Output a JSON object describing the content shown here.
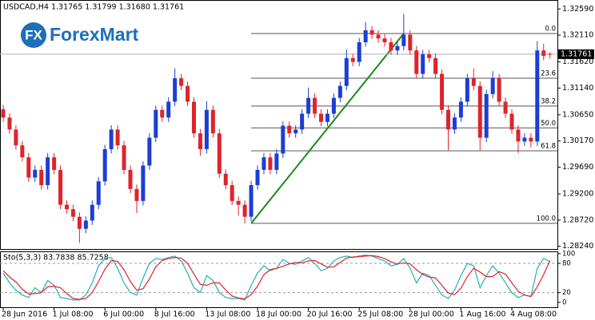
{
  "chart_data": {
    "type": "candlestick",
    "header": "USDCAD,H4  1.31765 1.31799 1.31680 1.31761",
    "watermark_icon": "FX",
    "watermark": "ForexMart",
    "up_color": "#1c3ed4",
    "down_color": "#e0232b",
    "ylim": [
      1.2819,
      1.3274
    ],
    "yticks": [
      {
        "value": 1.3259,
        "label": "1.32590"
      },
      {
        "value": 1.3211,
        "label": "1.32110"
      },
      {
        "value": 1.3162,
        "label": "1.31620"
      },
      {
        "value": 1.3114,
        "label": "1.31140"
      },
      {
        "value": 1.3065,
        "label": "1.30650"
      },
      {
        "value": 1.3017,
        "label": "1.30170"
      },
      {
        "value": 1.2969,
        "label": "1.29690"
      },
      {
        "value": 1.292,
        "label": "1.29200"
      },
      {
        "value": 1.2872,
        "label": "1.28720"
      },
      {
        "value": 1.2824,
        "label": "1.28240"
      }
    ],
    "current_price": 1.31761,
    "categories": [
      "28 Jun 2016",
      null,
      null,
      null,
      null,
      null,
      null,
      null,
      "1 Jul 08:00",
      null,
      null,
      null,
      null,
      null,
      null,
      null,
      "6 Jul 00:00",
      null,
      null,
      null,
      null,
      null,
      null,
      null,
      "8 Jul 16:00",
      null,
      null,
      null,
      null,
      null,
      null,
      null,
      "13 Jul 08:00",
      null,
      null,
      null,
      null,
      null,
      null,
      null,
      "18 Jul 00:00",
      null,
      null,
      null,
      null,
      null,
      null,
      null,
      "20 Jul 16:00",
      null,
      null,
      null,
      null,
      null,
      null,
      null,
      "25 Jul 08:00",
      null,
      null,
      null,
      null,
      null,
      null,
      null,
      "28 Jul 00:00",
      null,
      null,
      null,
      null,
      null,
      null,
      null,
      "1 Aug 16:00",
      null,
      null,
      null,
      null,
      null,
      null,
      null,
      "4 Aug 08:00",
      null,
      null,
      null,
      null,
      null,
      null
    ],
    "candles": [
      [
        1.3075,
        1.3083,
        1.3052,
        1.306
      ],
      [
        1.306,
        1.3068,
        1.303,
        1.3038
      ],
      [
        1.3038,
        1.3046,
        1.3001,
        1.3009
      ],
      [
        1.3009,
        1.3017,
        1.2979,
        1.2987
      ],
      [
        1.2987,
        1.2995,
        1.2942,
        1.295
      ],
      [
        1.295,
        1.2972,
        1.2942,
        1.2964
      ],
      [
        1.2964,
        1.2972,
        1.2928,
        1.2936
      ],
      [
        1.2936,
        1.2995,
        1.2928,
        1.2987
      ],
      [
        1.2987,
        1.2995,
        1.2956,
        1.2964
      ],
      [
        1.2964,
        1.2972,
        1.2892,
        1.29
      ],
      [
        1.29,
        1.2908,
        1.2884,
        1.2892
      ],
      [
        1.2892,
        1.29,
        1.287,
        1.2878
      ],
      [
        1.2878,
        1.2886,
        1.283,
        1.2856
      ],
      [
        1.2856,
        1.2879,
        1.2848,
        1.2871
      ],
      [
        1.2871,
        1.2908,
        1.2863,
        1.29
      ],
      [
        1.29,
        1.2951,
        1.2892,
        1.2943
      ],
      [
        1.2943,
        1.301,
        1.2935,
        1.3002
      ],
      [
        1.3002,
        1.3046,
        1.2994,
        1.3038
      ],
      [
        1.3038,
        1.3046,
        1.3001,
        1.3009
      ],
      [
        1.3009,
        1.3017,
        1.2956,
        1.2964
      ],
      [
        1.2964,
        1.2972,
        1.2921,
        1.2929
      ],
      [
        1.2929,
        1.2937,
        1.2885,
        1.2907
      ],
      [
        1.2907,
        1.298,
        1.2899,
        1.2972
      ],
      [
        1.2972,
        1.3031,
        1.2964,
        1.3023
      ],
      [
        1.3023,
        1.3082,
        1.3015,
        1.3074
      ],
      [
        1.3074,
        1.3082,
        1.3052,
        1.306
      ],
      [
        1.306,
        1.3097,
        1.3052,
        1.3089
      ],
      [
        1.3089,
        1.315,
        1.3081,
        1.3132
      ],
      [
        1.3132,
        1.314,
        1.311,
        1.3118
      ],
      [
        1.3118,
        1.3126,
        1.3081,
        1.3089
      ],
      [
        1.3089,
        1.3097,
        1.3023,
        1.3031
      ],
      [
        1.3031,
        1.3039,
        1.299,
        1.3002
      ],
      [
        1.3002,
        1.309,
        1.2994,
        1.3074
      ],
      [
        1.3074,
        1.3082,
        1.3023,
        1.3031
      ],
      [
        1.3031,
        1.3039,
        1.2949,
        1.2957
      ],
      [
        1.2957,
        1.2965,
        1.2928,
        1.2936
      ],
      [
        1.2936,
        1.2944,
        1.2899,
        1.2907
      ],
      [
        1.2907,
        1.2915,
        1.288,
        1.29
      ],
      [
        1.29,
        1.2908,
        1.2866,
        1.2878
      ],
      [
        1.2878,
        1.2944,
        1.287,
        1.2936
      ],
      [
        1.2936,
        1.2972,
        1.2928,
        1.2964
      ],
      [
        1.2964,
        1.2995,
        1.2956,
        1.2987
      ],
      [
        1.2987,
        1.2995,
        1.2956,
        1.2964
      ],
      [
        1.2964,
        1.3002,
        1.2956,
        1.2994
      ],
      [
        1.2994,
        1.3053,
        1.2986,
        1.3045
      ],
      [
        1.3045,
        1.3053,
        1.3023,
        1.3031
      ],
      [
        1.3031,
        1.3046,
        1.3023,
        1.3038
      ],
      [
        1.3038,
        1.3075,
        1.303,
        1.3067
      ],
      [
        1.3067,
        1.3115,
        1.3059,
        1.3096
      ],
      [
        1.3096,
        1.3104,
        1.3059,
        1.3067
      ],
      [
        1.3067,
        1.3075,
        1.3044,
        1.3052
      ],
      [
        1.3052,
        1.3075,
        1.3044,
        1.3067
      ],
      [
        1.3067,
        1.3104,
        1.3059,
        1.3096
      ],
      [
        1.3096,
        1.3126,
        1.3088,
        1.3118
      ],
      [
        1.3118,
        1.3185,
        1.311,
        1.3169
      ],
      [
        1.3169,
        1.3177,
        1.3154,
        1.3162
      ],
      [
        1.3162,
        1.3206,
        1.3154,
        1.3198
      ],
      [
        1.3198,
        1.3235,
        1.319,
        1.322
      ],
      [
        1.322,
        1.3228,
        1.3204,
        1.3212
      ],
      [
        1.3212,
        1.322,
        1.3197,
        1.3205
      ],
      [
        1.3205,
        1.3213,
        1.319,
        1.3198
      ],
      [
        1.3198,
        1.3206,
        1.3175,
        1.3183
      ],
      [
        1.3183,
        1.3199,
        1.3175,
        1.3191
      ],
      [
        1.3191,
        1.325,
        1.3183,
        1.3212
      ],
      [
        1.3212,
        1.322,
        1.3175,
        1.3183
      ],
      [
        1.3183,
        1.3191,
        1.3132,
        1.314
      ],
      [
        1.314,
        1.3184,
        1.3132,
        1.3176
      ],
      [
        1.3176,
        1.3184,
        1.3161,
        1.3169
      ],
      [
        1.3169,
        1.3177,
        1.3132,
        1.314
      ],
      [
        1.314,
        1.3148,
        1.3066,
        1.3074
      ],
      [
        1.3074,
        1.3082,
        1.3,
        1.3038
      ],
      [
        1.3038,
        1.3068,
        1.303,
        1.306
      ],
      [
        1.306,
        1.3097,
        1.3052,
        1.3089
      ],
      [
        1.3089,
        1.314,
        1.3081,
        1.3132
      ],
      [
        1.3132,
        1.315,
        1.311,
        1.3118
      ],
      [
        1.3118,
        1.3126,
        1.3,
        1.3023
      ],
      [
        1.3023,
        1.3111,
        1.3015,
        1.3103
      ],
      [
        1.3103,
        1.3145,
        1.3095,
        1.3132
      ],
      [
        1.3132,
        1.314,
        1.3081,
        1.3089
      ],
      [
        1.3089,
        1.3097,
        1.3059,
        1.3067
      ],
      [
        1.3067,
        1.3075,
        1.303,
        1.3038
      ],
      [
        1.3038,
        1.3046,
        1.2995,
        1.3016
      ],
      [
        1.3016,
        1.3031,
        1.3008,
        1.3023
      ],
      [
        1.3023,
        1.3031,
        1.3005,
        1.3016
      ],
      [
        1.3016,
        1.32,
        1.3008,
        1.3183
      ],
      [
        1.3183,
        1.3195,
        1.3165,
        1.3173
      ],
      [
        1.31765,
        1.31799,
        1.3168,
        1.31761
      ]
    ],
    "fibonacci": {
      "color": "#555555",
      "trend_color": "#1a8a1a",
      "start": 39,
      "end": 63,
      "levels": [
        {
          "value": 1.3214,
          "label": "0.0"
        },
        {
          "value": 1.3132,
          "label": "23.6"
        },
        {
          "value": 1.3081,
          "label": "38.2"
        },
        {
          "value": 1.3041,
          "label": "50.0"
        },
        {
          "value": 1.2999,
          "label": "61.8"
        },
        {
          "value": 1.2866,
          "label": "100.0"
        }
      ]
    },
    "indicator": {
      "type": "line",
      "label": "Sto(5,3,3) 83.7838 85.7258",
      "ylim": [
        -10,
        103
      ],
      "yticks": [
        100,
        80,
        20,
        0
      ],
      "levels": [
        80,
        20
      ],
      "series": [
        {
          "color": "#22b0b8",
          "values": [
            60,
            40,
            25,
            15,
            10,
            30,
            20,
            45,
            35,
            10,
            8,
            5,
            5,
            15,
            40,
            75,
            90,
            92,
            70,
            40,
            20,
            15,
            50,
            80,
            90,
            88,
            92,
            95,
            85,
            60,
            30,
            20,
            55,
            45,
            20,
            10,
            8,
            8,
            5,
            35,
            60,
            75,
            65,
            70,
            88,
            80,
            78,
            85,
            92,
            80,
            65,
            70,
            85,
            92,
            95,
            92,
            95,
            97,
            95,
            90,
            85,
            75,
            78,
            90,
            70,
            40,
            60,
            55,
            35,
            15,
            8,
            25,
            55,
            80,
            75,
            30,
            55,
            75,
            60,
            40,
            20,
            10,
            15,
            12,
            70,
            90,
            83.7838
          ]
        },
        {
          "color": "#e0232b",
          "values": [
            65,
            52,
            42,
            27,
            17,
            18,
            20,
            32,
            33,
            30,
            18,
            8,
            6,
            8,
            20,
            43,
            68,
            86,
            84,
            67,
            43,
            25,
            28,
            48,
            73,
            86,
            90,
            92,
            91,
            80,
            58,
            37,
            35,
            40,
            40,
            25,
            13,
            9,
            7,
            16,
            33,
            57,
            67,
            70,
            74,
            79,
            82,
            81,
            85,
            86,
            79,
            72,
            73,
            82,
            91,
            93,
            94,
            95,
            96,
            94,
            90,
            83,
            79,
            81,
            79,
            67,
            57,
            52,
            50,
            35,
            19,
            16,
            29,
            53,
            70,
            62,
            53,
            53,
            63,
            58,
            40,
            23,
            15,
            12,
            32,
            57,
            85.7258
          ]
        }
      ]
    }
  }
}
